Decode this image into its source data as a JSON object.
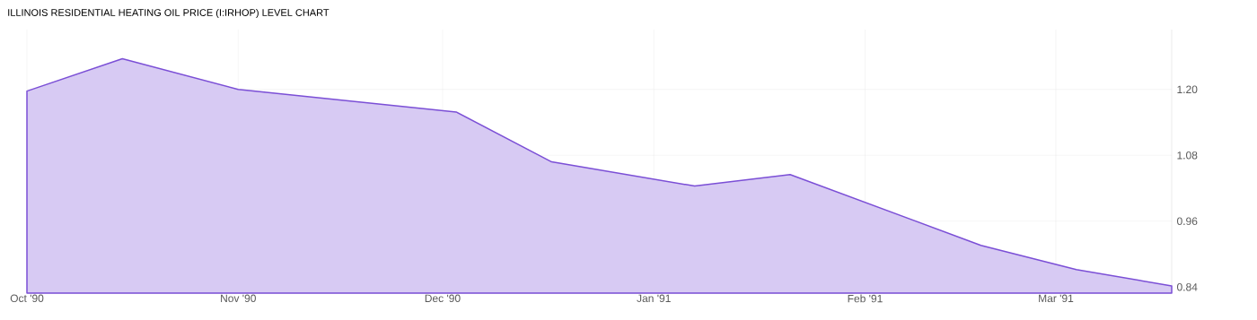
{
  "chart_data": {
    "type": "area",
    "title": "ILLINOIS RESIDENTIAL HEATING OIL PRICE (I:IRHOP) LEVEL CHART",
    "x": [
      "1990-10-01",
      "1990-10-15",
      "1990-11-01",
      "1990-12-03",
      "1990-12-17",
      "1991-01-07",
      "1991-01-21",
      "1991-02-18",
      "1991-03-04",
      "1991-03-18"
    ],
    "values": [
      1.197,
      1.256,
      1.2,
      1.159,
      1.068,
      1.024,
      1.045,
      0.916,
      0.872,
      0.842
    ],
    "color": "#7b4fd6",
    "xlim": [
      "1990-10-01",
      "1991-03-18"
    ],
    "xticks": [
      {
        "value": "1990-10-01",
        "label": "Oct '90"
      },
      {
        "value": "1990-11-01",
        "label": "Nov '90"
      },
      {
        "value": "1990-12-01",
        "label": "Dec '90"
      },
      {
        "value": "1991-01-01",
        "label": "Jan '91"
      },
      {
        "value": "1991-02-01",
        "label": "Feb '91"
      },
      {
        "value": "1991-03-01",
        "label": "Mar '91"
      }
    ],
    "ylim": [
      0.829,
      1.309
    ],
    "yticks": [
      {
        "value": 0.84,
        "label": "0.84"
      },
      {
        "value": 0.96,
        "label": "0.96"
      },
      {
        "value": 1.08,
        "label": "1.08"
      },
      {
        "value": 1.2,
        "label": "1.20"
      }
    ],
    "grid": true
  }
}
